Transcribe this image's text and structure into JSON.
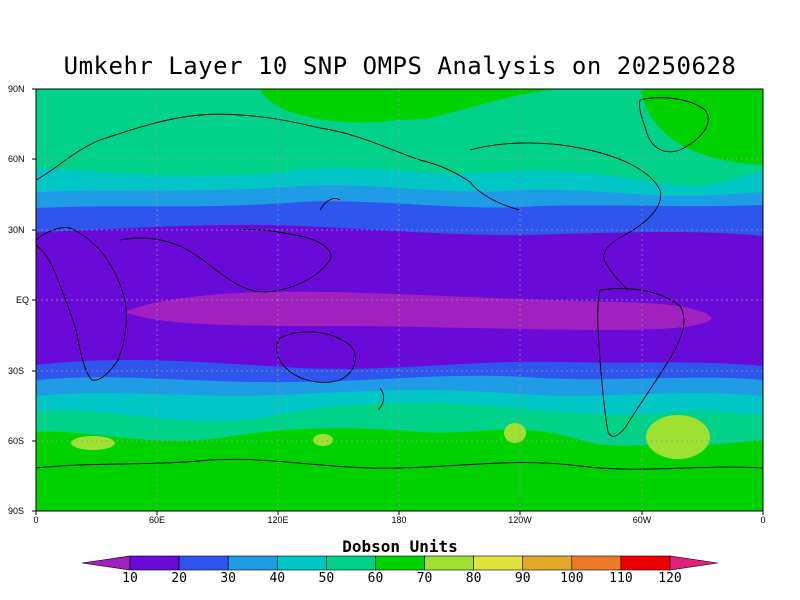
{
  "title": "Umkehr Layer 10 SNP OMPS Analysis on 20250628",
  "colorbar": {
    "title": "Dobson Units",
    "ticks": [
      "10",
      "20",
      "30",
      "40",
      "50",
      "60",
      "70",
      "80",
      "90",
      "100",
      "110",
      "120"
    ],
    "colors": [
      "#a020c0",
      "#6a0ad8",
      "#2e55ee",
      "#1f9ce6",
      "#00c6c6",
      "#00d28a",
      "#00d200",
      "#9ee132",
      "#e2e23c",
      "#e2a828",
      "#ee7a28",
      "#ee0000",
      "#e0207a"
    ]
  },
  "map": {
    "lat_labels": [
      "90N",
      "60N",
      "30N",
      "EQ",
      "30S",
      "60S",
      "90S"
    ],
    "lon_labels": [
      "0",
      "60E",
      "120E",
      "180",
      "120W",
      "60W",
      "0"
    ],
    "levels_du": {
      "north_polar": 70,
      "northern_midlat": 60,
      "subtropical_north": 40,
      "tropics": 20,
      "equatorial_band": 10,
      "subtropical_south": 30,
      "southern_midlat": 50,
      "south_polar": 70,
      "local_maxima_south": 80
    }
  }
}
